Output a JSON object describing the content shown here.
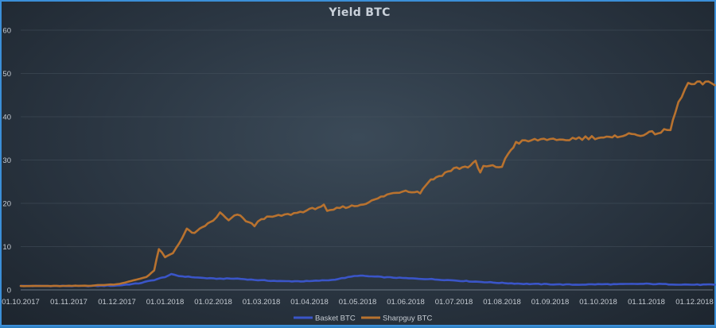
{
  "chart_data": {
    "type": "line",
    "title": "Yield BTC",
    "xlabel": "",
    "ylabel": "",
    "ylim": [
      0,
      60
    ],
    "yticks": [
      0,
      10,
      20,
      30,
      40,
      50,
      60
    ],
    "x_tick_labels": [
      "01.10.2017",
      "01.11.2017",
      "01.12.2017",
      "01.01.2018",
      "01.02.2018",
      "01.03.2018",
      "01.04.2018",
      "01.05.2018",
      "01.06.2018",
      "01.07.2018",
      "01.08.2018",
      "01.09.2018",
      "01.10.2018",
      "01.11.2018",
      "01.12.2018"
    ],
    "grid": true,
    "legend_position": "bottom",
    "series": [
      {
        "name": "Basket BTC",
        "color": "#3a55c8",
        "points": [
          [
            "01.10.2017",
            0.9
          ],
          [
            "01.11.2017",
            0.9
          ],
          [
            "15.11.2017",
            0.9
          ],
          [
            "01.12.2017",
            1.0
          ],
          [
            "15.12.2017",
            1.5
          ],
          [
            "25.12.2017",
            2.3
          ],
          [
            "01.01.2018",
            3.0
          ],
          [
            "05.01.2018",
            3.6
          ],
          [
            "10.01.2018",
            3.2
          ],
          [
            "20.01.2018",
            2.9
          ],
          [
            "01.02.2018",
            2.6
          ],
          [
            "15.02.2018",
            2.6
          ],
          [
            "01.03.2018",
            2.2
          ],
          [
            "15.03.2018",
            2.0
          ],
          [
            "01.04.2018",
            2.0
          ],
          [
            "15.04.2018",
            2.3
          ],
          [
            "25.04.2018",
            2.9
          ],
          [
            "01.05.2018",
            3.3
          ],
          [
            "10.05.2018",
            3.1
          ],
          [
            "20.05.2018",
            2.9
          ],
          [
            "01.06.2018",
            2.7
          ],
          [
            "15.06.2018",
            2.5
          ],
          [
            "01.07.2018",
            2.2
          ],
          [
            "15.07.2018",
            1.9
          ],
          [
            "01.08.2018",
            1.6
          ],
          [
            "15.08.2018",
            1.4
          ],
          [
            "01.09.2018",
            1.3
          ],
          [
            "15.09.2018",
            1.2
          ],
          [
            "01.10.2018",
            1.3
          ],
          [
            "15.10.2018",
            1.3
          ],
          [
            "01.11.2018",
            1.4
          ],
          [
            "15.11.2018",
            1.3
          ],
          [
            "01.12.2018",
            1.2
          ],
          [
            "14.12.2018",
            1.2
          ]
        ]
      },
      {
        "name": "Sharpguy BTC",
        "color": "#b8722f",
        "points": [
          [
            "01.10.2017",
            0.9
          ],
          [
            "01.11.2017",
            0.9
          ],
          [
            "15.11.2017",
            1.0
          ],
          [
            "01.12.2017",
            1.3
          ],
          [
            "10.12.2017",
            2.0
          ],
          [
            "20.12.2017",
            3.0
          ],
          [
            "25.12.2017",
            4.5
          ],
          [
            "28.12.2017",
            9.5
          ],
          [
            "01.01.2018",
            7.5
          ],
          [
            "06.01.2018",
            8.5
          ],
          [
            "12.01.2018",
            12.0
          ],
          [
            "15.01.2018",
            14.0
          ],
          [
            "20.01.2018",
            13.0
          ],
          [
            "25.01.2018",
            14.5
          ],
          [
            "01.02.2018",
            16.0
          ],
          [
            "05.02.2018",
            17.8
          ],
          [
            "10.02.2018",
            16.0
          ],
          [
            "15.02.2018",
            17.5
          ],
          [
            "20.02.2018",
            16.0
          ],
          [
            "25.02.2018",
            14.8
          ],
          [
            "01.03.2018",
            16.5
          ],
          [
            "10.03.2018",
            17.0
          ],
          [
            "20.03.2018",
            17.5
          ],
          [
            "01.04.2018",
            18.5
          ],
          [
            "10.04.2018",
            19.5
          ],
          [
            "12.04.2018",
            18.0
          ],
          [
            "20.04.2018",
            19.0
          ],
          [
            "01.05.2018",
            19.5
          ],
          [
            "10.05.2018",
            20.5
          ],
          [
            "20.05.2018",
            22.0
          ],
          [
            "01.06.2018",
            23.0
          ],
          [
            "10.06.2018",
            22.5
          ],
          [
            "15.06.2018",
            25.0
          ],
          [
            "20.06.2018",
            26.0
          ],
          [
            "01.07.2018",
            28.0
          ],
          [
            "10.07.2018",
            28.5
          ],
          [
            "15.07.2018",
            29.5
          ],
          [
            "18.07.2018",
            27.0
          ],
          [
            "20.07.2018",
            28.5
          ],
          [
            "01.08.2018",
            28.5
          ],
          [
            "05.08.2018",
            31.5
          ],
          [
            "10.08.2018",
            34.0
          ],
          [
            "20.08.2018",
            34.5
          ],
          [
            "01.09.2018",
            35.0
          ],
          [
            "05.09.2018",
            34.2
          ],
          [
            "15.09.2018",
            35.0
          ],
          [
            "01.10.2018",
            35.3
          ],
          [
            "10.10.2018",
            35.0
          ],
          [
            "15.10.2018",
            35.8
          ],
          [
            "01.11.2018",
            36.0
          ],
          [
            "10.11.2018",
            36.5
          ],
          [
            "16.11.2018",
            37.0
          ],
          [
            "19.11.2018",
            41.0
          ],
          [
            "23.11.2018",
            45.0
          ],
          [
            "27.11.2018",
            47.5
          ],
          [
            "01.12.2018",
            47.5
          ],
          [
            "08.12.2018",
            47.8
          ],
          [
            "14.12.2018",
            47.3
          ]
        ]
      }
    ]
  }
}
